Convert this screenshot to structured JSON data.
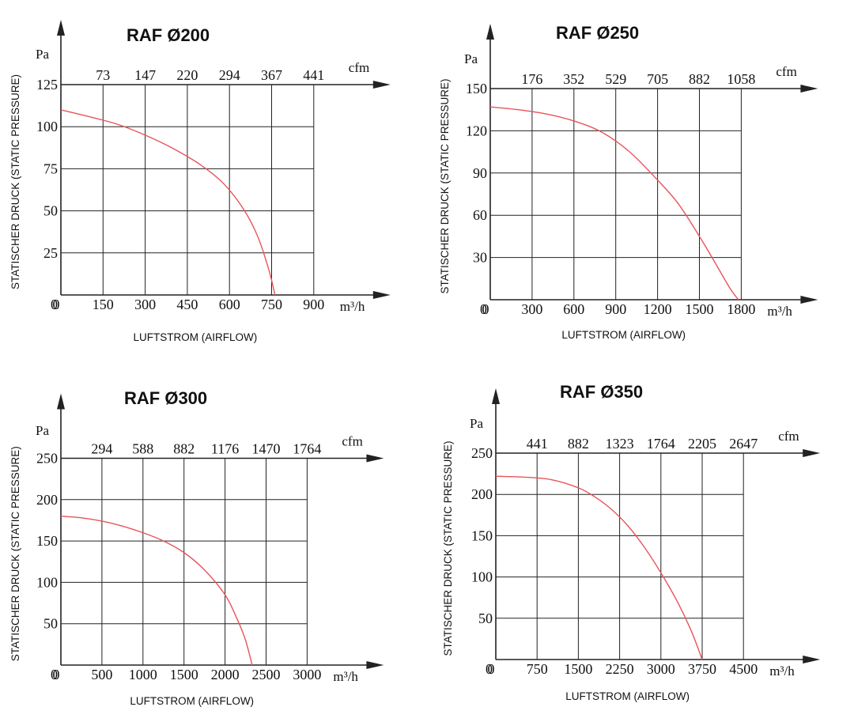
{
  "x_unit": "m³/h",
  "top_unit": "cfm",
  "y_unit": "Pa",
  "ylabel": "STATISCHER DRUCK (STATIC PRESSURE)",
  "xlabel": "LUFTSTROM (AIRFLOW)",
  "colors": {
    "curve": "#e8545a",
    "grid": "#222222",
    "text": "#111111"
  },
  "chart_data": [
    {
      "type": "line",
      "title": "RAF Ø200",
      "x_ticks": [
        0,
        150,
        300,
        450,
        600,
        750,
        900
      ],
      "top_ticks": [
        "73",
        "147",
        "220",
        "294",
        "367",
        "441"
      ],
      "y_ticks": [
        0,
        25,
        50,
        75,
        100,
        125
      ],
      "xlim": [
        0,
        900
      ],
      "ylim": [
        0,
        125
      ],
      "grid": true,
      "series": [
        {
          "x": [
            0,
            100,
            200,
            300,
            400,
            500,
            580,
            650,
            700,
            740,
            762
          ],
          "y": [
            110,
            106,
            101.5,
            95,
            87,
            77,
            66,
            51,
            35,
            15,
            0
          ]
        }
      ]
    },
    {
      "type": "line",
      "title": "RAF Ø250",
      "x_ticks": [
        0,
        300,
        600,
        900,
        1200,
        1500,
        1800
      ],
      "top_ticks": [
        "176",
        "352",
        "529",
        "705",
        "882",
        "1058"
      ],
      "y_ticks": [
        0,
        30,
        60,
        90,
        120,
        150
      ],
      "xlim": [
        0,
        1800
      ],
      "ylim": [
        0,
        150
      ],
      "grid": true,
      "series": [
        {
          "x": [
            0,
            200,
            400,
            600,
            800,
            1000,
            1200,
            1350,
            1500,
            1620,
            1720,
            1780
          ],
          "y": [
            137,
            135,
            132,
            127,
            119,
            105,
            85,
            68,
            45,
            25,
            8,
            0
          ]
        }
      ]
    },
    {
      "type": "line",
      "title": "RAF Ø300",
      "x_ticks": [
        0,
        500,
        1000,
        1500,
        2000,
        2500,
        3000
      ],
      "top_ticks": [
        "294",
        "588",
        "882",
        "1176",
        "1470",
        "1764"
      ],
      "y_ticks": [
        0,
        50,
        100,
        150,
        200,
        250
      ],
      "xlim": [
        0,
        3000
      ],
      "ylim": [
        0,
        250
      ],
      "grid": true,
      "series": [
        {
          "x": [
            0,
            250,
            500,
            750,
            1000,
            1250,
            1500,
            1750,
            2000,
            2150,
            2250,
            2330
          ],
          "y": [
            180,
            178,
            174,
            168,
            160,
            150,
            136,
            115,
            85,
            55,
            30,
            0
          ]
        }
      ]
    },
    {
      "type": "line",
      "title": "RAF Ø350",
      "x_ticks": [
        0,
        750,
        1500,
        2250,
        3000,
        3750,
        4500
      ],
      "top_ticks": [
        "441",
        "882",
        "1323",
        "1764",
        "2205",
        "2647"
      ],
      "y_ticks": [
        0,
        50,
        100,
        150,
        200,
        250
      ],
      "xlim": [
        0,
        4500
      ],
      "ylim": [
        0,
        250
      ],
      "grid": true,
      "series": [
        {
          "x": [
            0,
            500,
            1000,
            1500,
            1800,
            2100,
            2400,
            2700,
            3000,
            3300,
            3550,
            3750
          ],
          "y": [
            222,
            221,
            218,
            208,
            197,
            182,
            162,
            136,
            105,
            70,
            35,
            0
          ]
        }
      ]
    }
  ]
}
